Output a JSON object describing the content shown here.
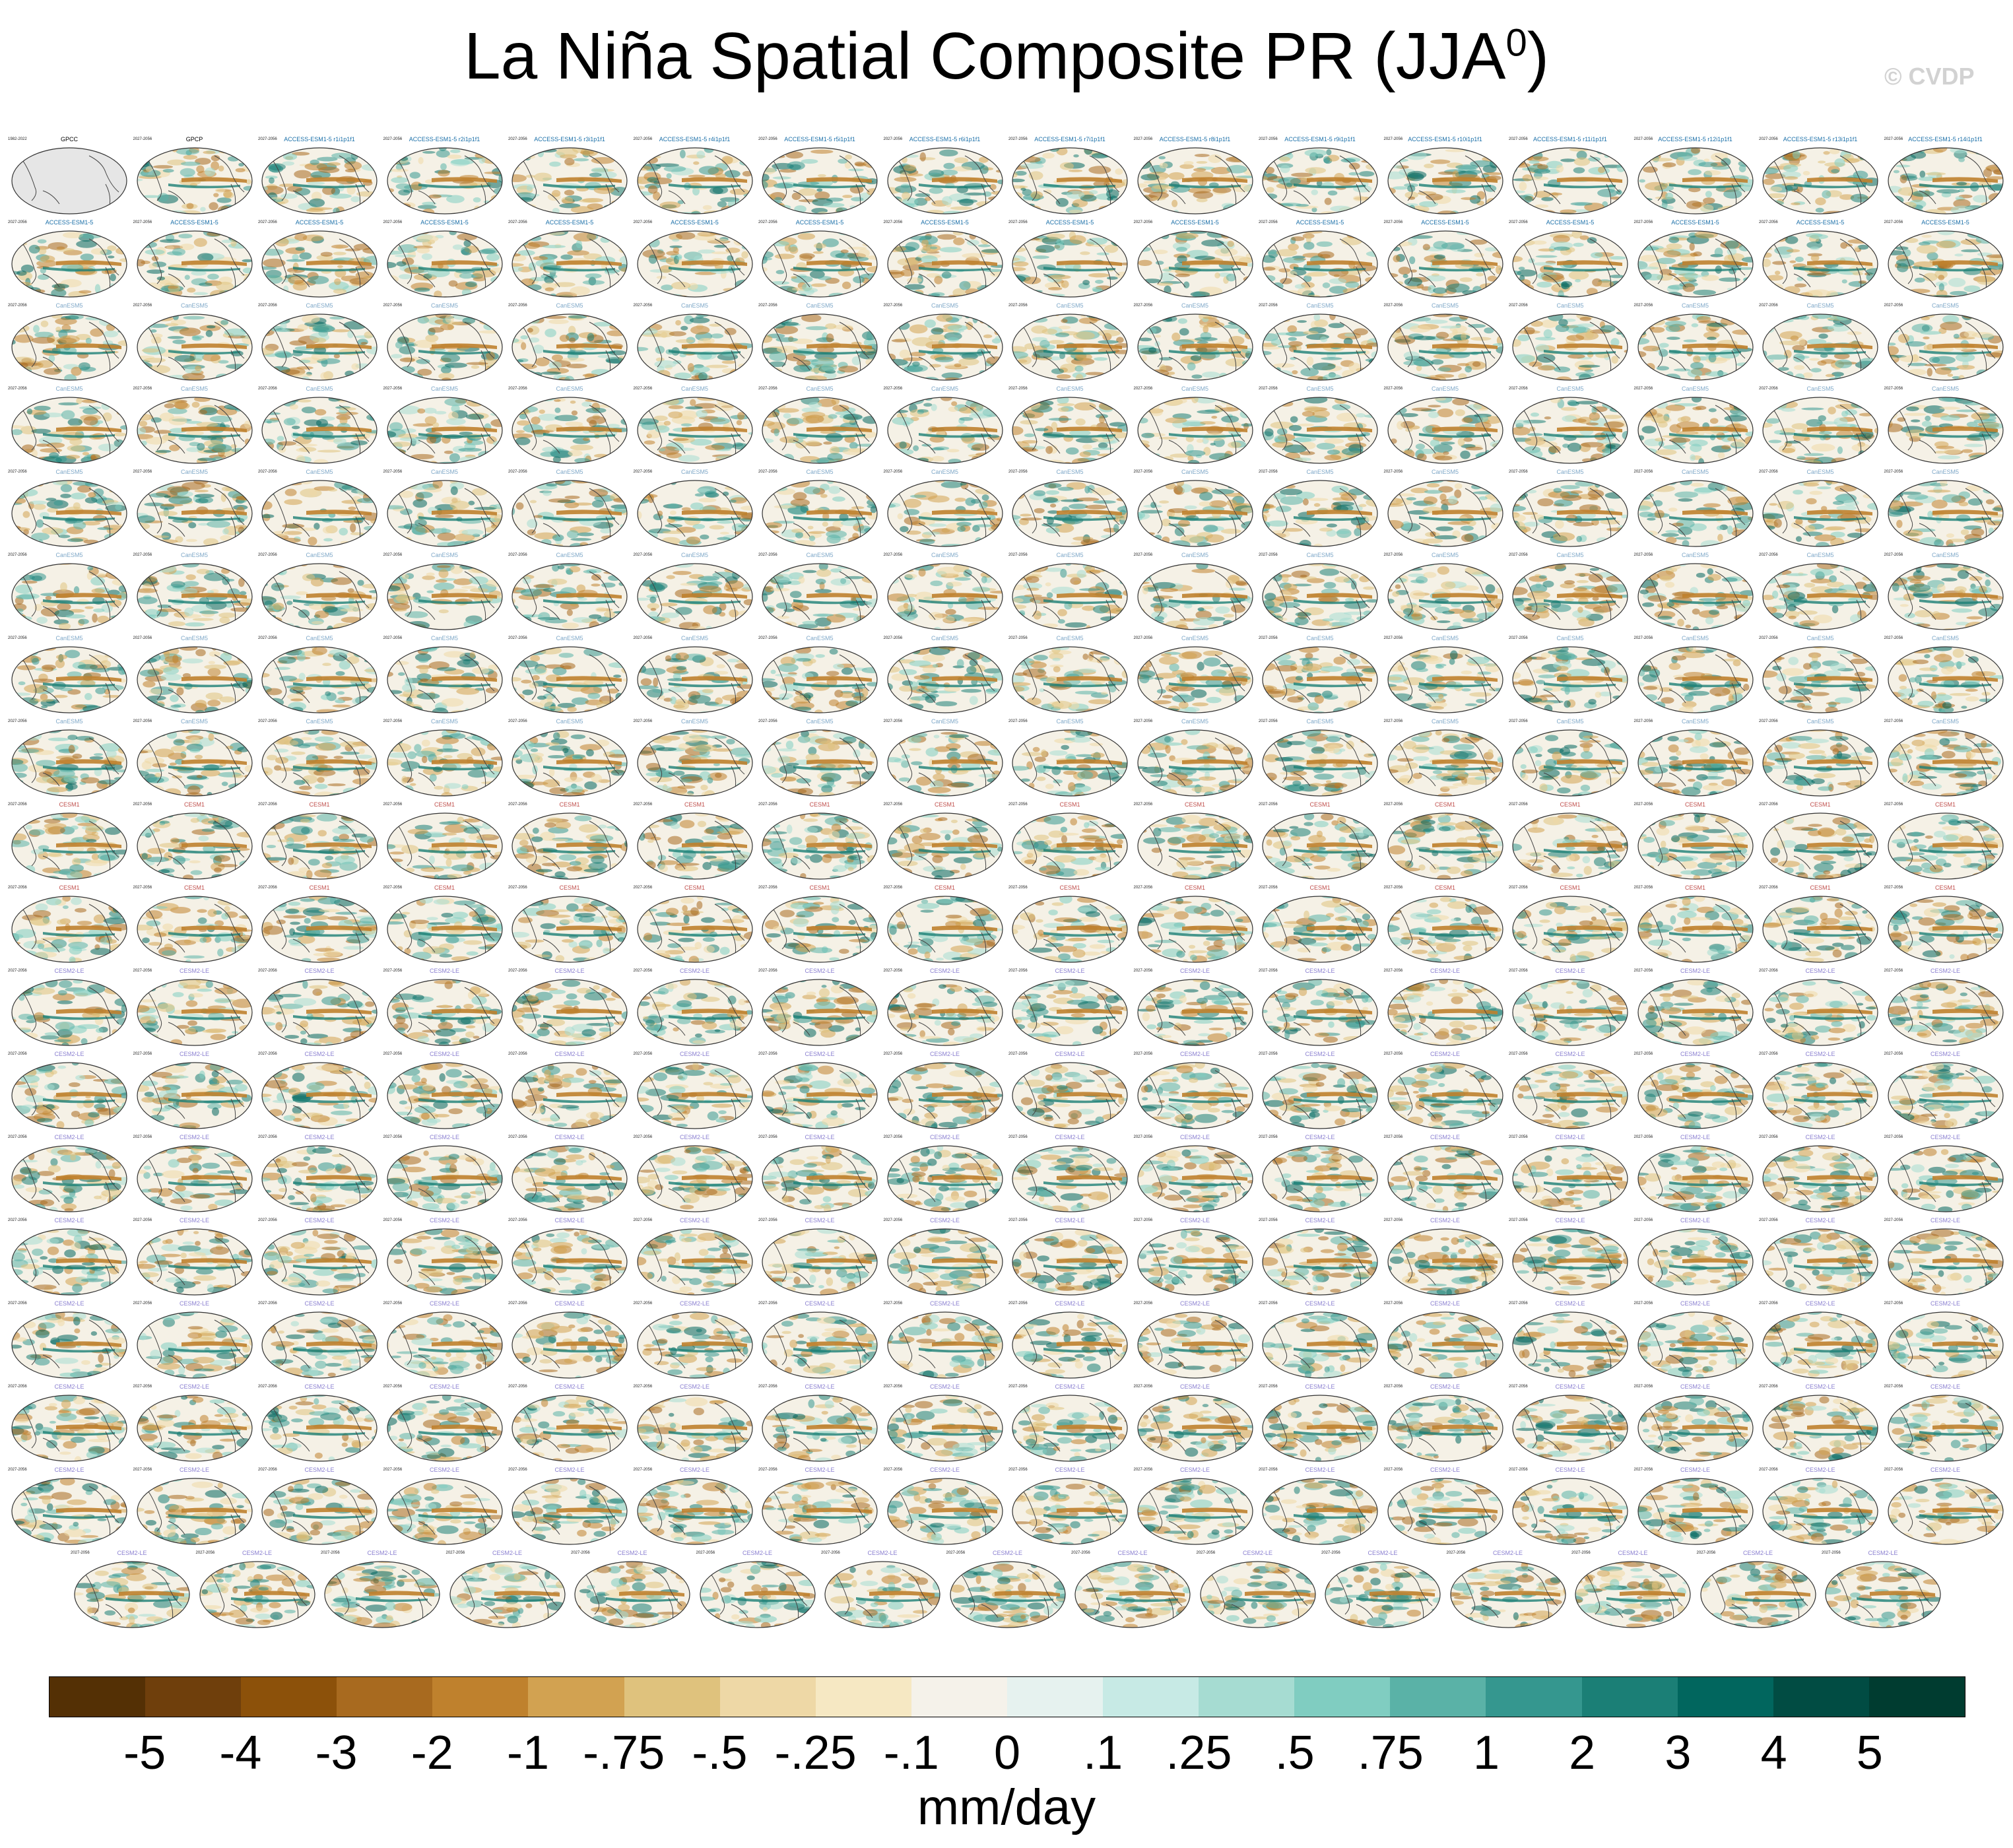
{
  "title": {
    "main": "La Niña Spatial Composite PR (JJA",
    "superscript": "0",
    "close": ")"
  },
  "watermark": "© CVDP",
  "colorbar": {
    "units": "mm/day",
    "labels": [
      "-5",
      "-4",
      "-3",
      "-2",
      "-1",
      "-.75",
      "-.5",
      "-.25",
      "-.1",
      "0",
      ".1",
      ".25",
      ".5",
      ".75",
      "1",
      "2",
      "3",
      "4",
      "5"
    ],
    "colors": [
      "#543005",
      "#6f3f0c",
      "#8c510a",
      "#a86a1f",
      "#bf812d",
      "#d2a251",
      "#dfc27d",
      "#eed8a6",
      "#f6e8c3",
      "#f5f2ea",
      "#e6f2ef",
      "#c7eae5",
      "#a6dcd2",
      "#80cdc1",
      "#5ab2a7",
      "#35978f",
      "#1b7f76",
      "#01665e",
      "#014c43",
      "#003c30"
    ]
  },
  "panel_grid": {
    "rows": 18,
    "cols": 16,
    "last_row_count": 15
  },
  "panels": [
    {
      "title": "GPCC",
      "left": "1982-2022",
      "right": "",
      "color": "#000000",
      "observation": true
    },
    {
      "title": "GPCP",
      "left": "",
      "right": "",
      "color": "#000000"
    },
    {
      "title": "ACCESS-ESM1-5 r1i1p1f1",
      "color": "#1a6fa8"
    },
    {
      "title": "ACCESS-ESM1-5 r2i1p1f1",
      "color": "#1a6fa8"
    },
    {
      "title": "ACCESS-ESM1-5 r3i1p1f1",
      "color": "#1a6fa8"
    },
    {
      "title": "ACCESS-ESM1-5 r4i1p1f1",
      "color": "#1a6fa8"
    },
    {
      "title": "ACCESS-ESM1-5 r5i1p1f1",
      "color": "#1a6fa8"
    },
    {
      "title": "ACCESS-ESM1-5 r6i1p1f1",
      "color": "#1a6fa8"
    },
    {
      "title": "ACCESS-ESM1-5 r7i1p1f1",
      "color": "#1a6fa8"
    },
    {
      "title": "ACCESS-ESM1-5 r8i1p1f1",
      "color": "#1a6fa8"
    },
    {
      "title": "ACCESS-ESM1-5 r9i1p1f1",
      "color": "#1a6fa8"
    },
    {
      "title": "ACCESS-ESM1-5 r10i1p1f1",
      "color": "#1a6fa8"
    },
    {
      "title": "ACCESS-ESM1-5 r11i1p1f1",
      "color": "#1a6fa8"
    },
    {
      "title": "ACCESS-ESM1-5 r12i1p1f1",
      "color": "#1a6fa8"
    },
    {
      "title": "ACCESS-ESM1-5 r13i1p1f1",
      "color": "#1a6fa8"
    },
    {
      "title": "ACCESS-ESM1-5 r14i1p1f1",
      "color": "#1a6fa8"
    }
  ],
  "panel_groups": [
    {
      "label": "ACCESS-ESM1-5",
      "color": "#1a6fa8",
      "from_row": 1,
      "to_row": 2
    },
    {
      "label": "CanESM5",
      "color": "#7fa8c8",
      "from_row": 2,
      "to_row": 7
    },
    {
      "label": "CESM1",
      "color": "#c0504d",
      "from_row": 8,
      "to_row": 10
    },
    {
      "label": "CESM2-LE",
      "color": "#8a7fd0",
      "from_row": 10,
      "to_row": 17
    }
  ],
  "period_label": "2027-2056"
}
